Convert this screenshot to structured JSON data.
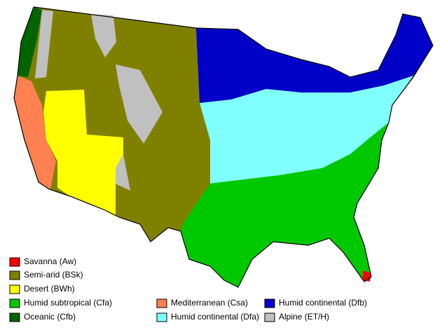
{
  "legend": [
    {
      "label": "Savanna (Aw)",
      "color": "#ff0000"
    },
    {
      "label": "Semi-arid (BSk)",
      "color": "#808000"
    },
    {
      "label": "Desert (BWh)",
      "color": "#ffff00"
    },
    {
      "label": "Humid subtropical (Cfa)",
      "color": "#00c800"
    },
    {
      "label": "Oceanic (Cfb)",
      "color": "#006400"
    },
    {
      "label": "Mediterranean (Csa)",
      "color": "#ff8050"
    },
    {
      "label": "Humid continental (Dfa)",
      "color": "#80ffff"
    },
    {
      "label": "Humid continental (Dfb)",
      "color": "#0000c8"
    },
    {
      "label": "Alpine (ET/H)",
      "color": "#c0c0c0"
    }
  ]
}
